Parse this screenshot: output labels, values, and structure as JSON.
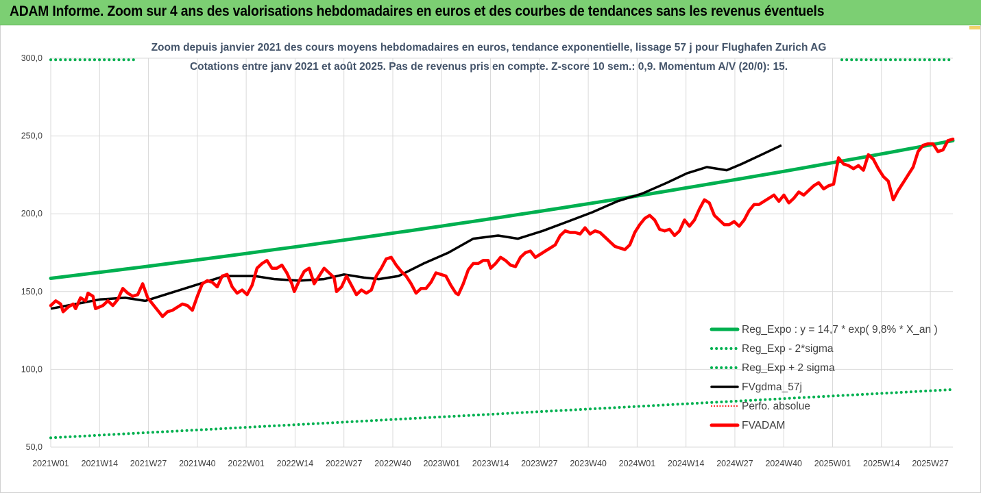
{
  "banner": {
    "title": "ADAM Informe. Zoom sur 4 ans des valorisations hebdomadaires en euros et des courbes de tendances sans les revenus éventuels"
  },
  "colors": {
    "banner_bg": "#7ccf73",
    "reg_expo": "#00b050",
    "fvgdma": "#000000",
    "fvadam": "#ff0000",
    "perfo": "#ff0000",
    "title_text": "#44546a",
    "grid": "#d9d9d9"
  },
  "chart_data": {
    "type": "line",
    "title": "Zoom depuis janvier 2021 des cours moyens hebdomadaires en euros, tendance exponentielle, lissage 57 j pour Flughafen Zurich AG",
    "subtitle": "Cotations entre janv 2021 et août 2025. Pas de revenus pris en compte. Z-score 10 sem.: 0,9. Momentum A/V (20/0): 15.",
    "ylim": [
      50,
      300
    ],
    "yticks": [
      50,
      100,
      150,
      200,
      250,
      300
    ],
    "ytick_labels": [
      "50,0",
      "100,0",
      "150,0",
      "200,0",
      "250,0",
      "300,0"
    ],
    "grid": true,
    "legend_position": "bottom-right",
    "x_count": 241,
    "xtick_labels": [
      "2021W01",
      "2021W14",
      "2021W27",
      "2021W40",
      "2022W01",
      "2022W14",
      "2022W27",
      "2022W40",
      "2023W01",
      "2023W14",
      "2023W27",
      "2023W40",
      "2024W01",
      "2024W14",
      "2024W27",
      "2024W40",
      "2025W01",
      "2025W14",
      "2025W27"
    ],
    "xtick_positions": [
      0,
      13,
      26,
      39,
      52,
      65,
      78,
      91,
      104,
      117,
      130,
      143,
      156,
      169,
      182,
      195,
      208,
      221,
      234
    ],
    "series": [
      {
        "name": "Reg_Expo : y = 14,7 * exp( 9,8% *  X_an )",
        "style": "solid",
        "start": [
          0,
          158.5
        ],
        "end": [
          240,
          247
        ]
      },
      {
        "name": "Reg_Exp - 2*sigma",
        "style": "dotted",
        "start": [
          0,
          56
        ],
        "end": [
          240,
          87
        ]
      },
      {
        "name": "Reg_Exp + 2 sigma",
        "style": "dotted",
        "start": [
          0,
          299
        ],
        "end": [
          240,
          299
        ]
      },
      {
        "name": "FVgdma_57j",
        "style": "solid",
        "points": [
          [
            0,
            139
          ],
          [
            10,
            142
          ],
          [
            20,
            145
          ],
          [
            30,
            146
          ],
          [
            38,
            144
          ],
          [
            48,
            149
          ],
          [
            60,
            155
          ],
          [
            70,
            160
          ],
          [
            82,
            160
          ],
          [
            90,
            158
          ],
          [
            100,
            157
          ],
          [
            110,
            158
          ],
          [
            118,
            161
          ],
          [
            126,
            159
          ],
          [
            132,
            158
          ],
          [
            140,
            160
          ],
          [
            150,
            168
          ],
          [
            160,
            175
          ],
          [
            170,
            184
          ],
          [
            180,
            186
          ],
          [
            188,
            184
          ],
          [
            198,
            189
          ],
          [
            208,
            195
          ],
          [
            218,
            201
          ],
          [
            228,
            208
          ],
          [
            238,
            213
          ],
          [
            248,
            220
          ],
          [
            256,
            226
          ],
          [
            264,
            230
          ],
          [
            272,
            228
          ],
          [
            278,
            232
          ],
          [
            286,
            238
          ],
          [
            294,
            244
          ]
        ]
      },
      {
        "name": "Perfo. absolue",
        "style": "dotted-thin",
        "points": []
      },
      {
        "name": "FVADAM",
        "style": "solid-thick",
        "points": [
          [
            0,
            141
          ],
          [
            2,
            144
          ],
          [
            4,
            142
          ],
          [
            5,
            137
          ],
          [
            7,
            140
          ],
          [
            9,
            142
          ],
          [
            10,
            139
          ],
          [
            12,
            146
          ],
          [
            14,
            144
          ],
          [
            15,
            149
          ],
          [
            17,
            147
          ],
          [
            18,
            139
          ],
          [
            21,
            141
          ],
          [
            23,
            144
          ],
          [
            25,
            141
          ],
          [
            27,
            145
          ],
          [
            29,
            152
          ],
          [
            31,
            149
          ],
          [
            33,
            147
          ],
          [
            35,
            148
          ],
          [
            37,
            155
          ],
          [
            39,
            146
          ],
          [
            41,
            142
          ],
          [
            43,
            138
          ],
          [
            45,
            134
          ],
          [
            47,
            137
          ],
          [
            49,
            138
          ],
          [
            51,
            140
          ],
          [
            53,
            142
          ],
          [
            55,
            141
          ],
          [
            57,
            138
          ],
          [
            59,
            147
          ],
          [
            61,
            155
          ],
          [
            63,
            157
          ],
          [
            65,
            156
          ],
          [
            67,
            153
          ],
          [
            69,
            160
          ],
          [
            71,
            161
          ],
          [
            73,
            153
          ],
          [
            75,
            149
          ],
          [
            77,
            151
          ],
          [
            79,
            148
          ],
          [
            81,
            154
          ],
          [
            83,
            165
          ],
          [
            85,
            168
          ],
          [
            87,
            170
          ],
          [
            89,
            165
          ],
          [
            91,
            165
          ],
          [
            93,
            167
          ],
          [
            95,
            162
          ],
          [
            97,
            155
          ],
          [
            98,
            150
          ],
          [
            100,
            157
          ],
          [
            102,
            163
          ],
          [
            104,
            165
          ],
          [
            106,
            155
          ],
          [
            108,
            160
          ],
          [
            110,
            165
          ],
          [
            112,
            162
          ],
          [
            114,
            159
          ],
          [
            115,
            150
          ],
          [
            117,
            153
          ],
          [
            119,
            160
          ],
          [
            121,
            154
          ],
          [
            123,
            148
          ],
          [
            125,
            151
          ],
          [
            127,
            149
          ],
          [
            129,
            151
          ],
          [
            131,
            160
          ],
          [
            133,
            165
          ],
          [
            135,
            171
          ],
          [
            137,
            172
          ],
          [
            139,
            167
          ],
          [
            141,
            163
          ],
          [
            143,
            160
          ],
          [
            145,
            155
          ],
          [
            147,
            149
          ],
          [
            149,
            152
          ],
          [
            151,
            152
          ],
          [
            153,
            156
          ],
          [
            155,
            162
          ],
          [
            157,
            161
          ],
          [
            159,
            160
          ],
          [
            161,
            154
          ],
          [
            163,
            149
          ],
          [
            164,
            148
          ],
          [
            166,
            155
          ],
          [
            168,
            164
          ],
          [
            170,
            168
          ],
          [
            172,
            168
          ],
          [
            174,
            170
          ],
          [
            176,
            170
          ],
          [
            177,
            165
          ],
          [
            179,
            168
          ],
          [
            181,
            172
          ],
          [
            183,
            170
          ],
          [
            185,
            167
          ],
          [
            187,
            166
          ],
          [
            189,
            172
          ],
          [
            191,
            175
          ],
          [
            193,
            176
          ],
          [
            195,
            172
          ],
          [
            197,
            174
          ],
          [
            199,
            176
          ],
          [
            201,
            178
          ],
          [
            203,
            180
          ],
          [
            205,
            186
          ],
          [
            207,
            189
          ],
          [
            209,
            188
          ],
          [
            211,
            188
          ],
          [
            213,
            187
          ],
          [
            215,
            191
          ],
          [
            217,
            187
          ],
          [
            219,
            189
          ],
          [
            221,
            188
          ],
          [
            223,
            185
          ],
          [
            225,
            182
          ],
          [
            227,
            179
          ],
          [
            229,
            178
          ],
          [
            231,
            177
          ],
          [
            233,
            180
          ],
          [
            235,
            188
          ],
          [
            237,
            193
          ],
          [
            239,
            197
          ],
          [
            241,
            199
          ],
          [
            243,
            196
          ],
          [
            245,
            190
          ],
          [
            247,
            189
          ],
          [
            249,
            190
          ],
          [
            251,
            186
          ],
          [
            253,
            189
          ],
          [
            255,
            196
          ],
          [
            257,
            192
          ],
          [
            259,
            196
          ],
          [
            261,
            203
          ],
          [
            263,
            209
          ],
          [
            265,
            207
          ],
          [
            267,
            199
          ],
          [
            269,
            196
          ],
          [
            271,
            193
          ],
          [
            273,
            193
          ],
          [
            275,
            195
          ],
          [
            277,
            192
          ],
          [
            279,
            196
          ],
          [
            281,
            202
          ],
          [
            283,
            206
          ],
          [
            285,
            206
          ],
          [
            287,
            208
          ],
          [
            289,
            210
          ],
          [
            291,
            212
          ],
          [
            293,
            208
          ],
          [
            295,
            212
          ],
          [
            297,
            207
          ],
          [
            299,
            210
          ],
          [
            301,
            214
          ],
          [
            303,
            212
          ],
          [
            305,
            215
          ],
          [
            307,
            218
          ],
          [
            309,
            220
          ],
          [
            311,
            216
          ],
          [
            313,
            218
          ],
          [
            315,
            219
          ],
          [
            317,
            236
          ],
          [
            319,
            232
          ],
          [
            321,
            231
          ],
          [
            323,
            229
          ],
          [
            325,
            231
          ],
          [
            327,
            228
          ],
          [
            329,
            238
          ],
          [
            331,
            235
          ],
          [
            333,
            229
          ],
          [
            335,
            224
          ],
          [
            337,
            221
          ],
          [
            339,
            209
          ],
          [
            341,
            215
          ],
          [
            343,
            220
          ],
          [
            345,
            225
          ],
          [
            347,
            230
          ],
          [
            349,
            240
          ],
          [
            351,
            244
          ],
          [
            353,
            245
          ],
          [
            355,
            245
          ],
          [
            357,
            240
          ],
          [
            359,
            241
          ],
          [
            361,
            247
          ],
          [
            363,
            248
          ]
        ]
      }
    ]
  }
}
